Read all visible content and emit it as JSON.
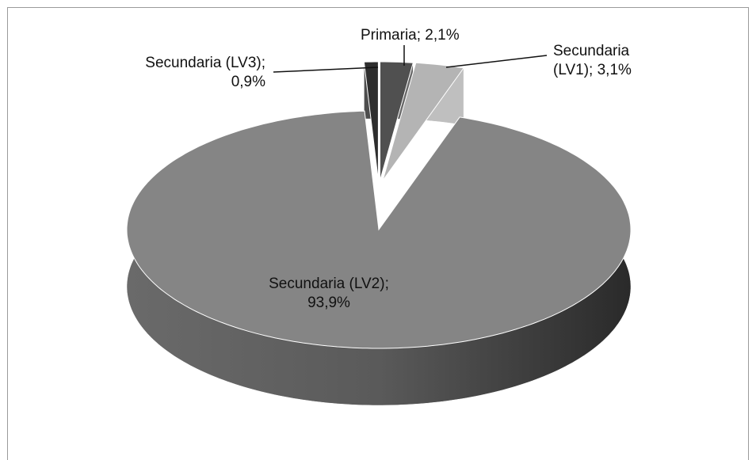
{
  "chart_data": {
    "type": "pie",
    "labels": [
      "Primaria; 2,1%",
      "Secundaria (LV1); 3,1%",
      "Secundaria (LV2); 93,9%",
      "Secundaria (LV3); 0,9%"
    ],
    "values": [
      2.1,
      3.1,
      93.9,
      0.9
    ],
    "colors": [
      "#505050",
      "#b4b4b4",
      "#858585",
      "#2e2e2e"
    ]
  }
}
